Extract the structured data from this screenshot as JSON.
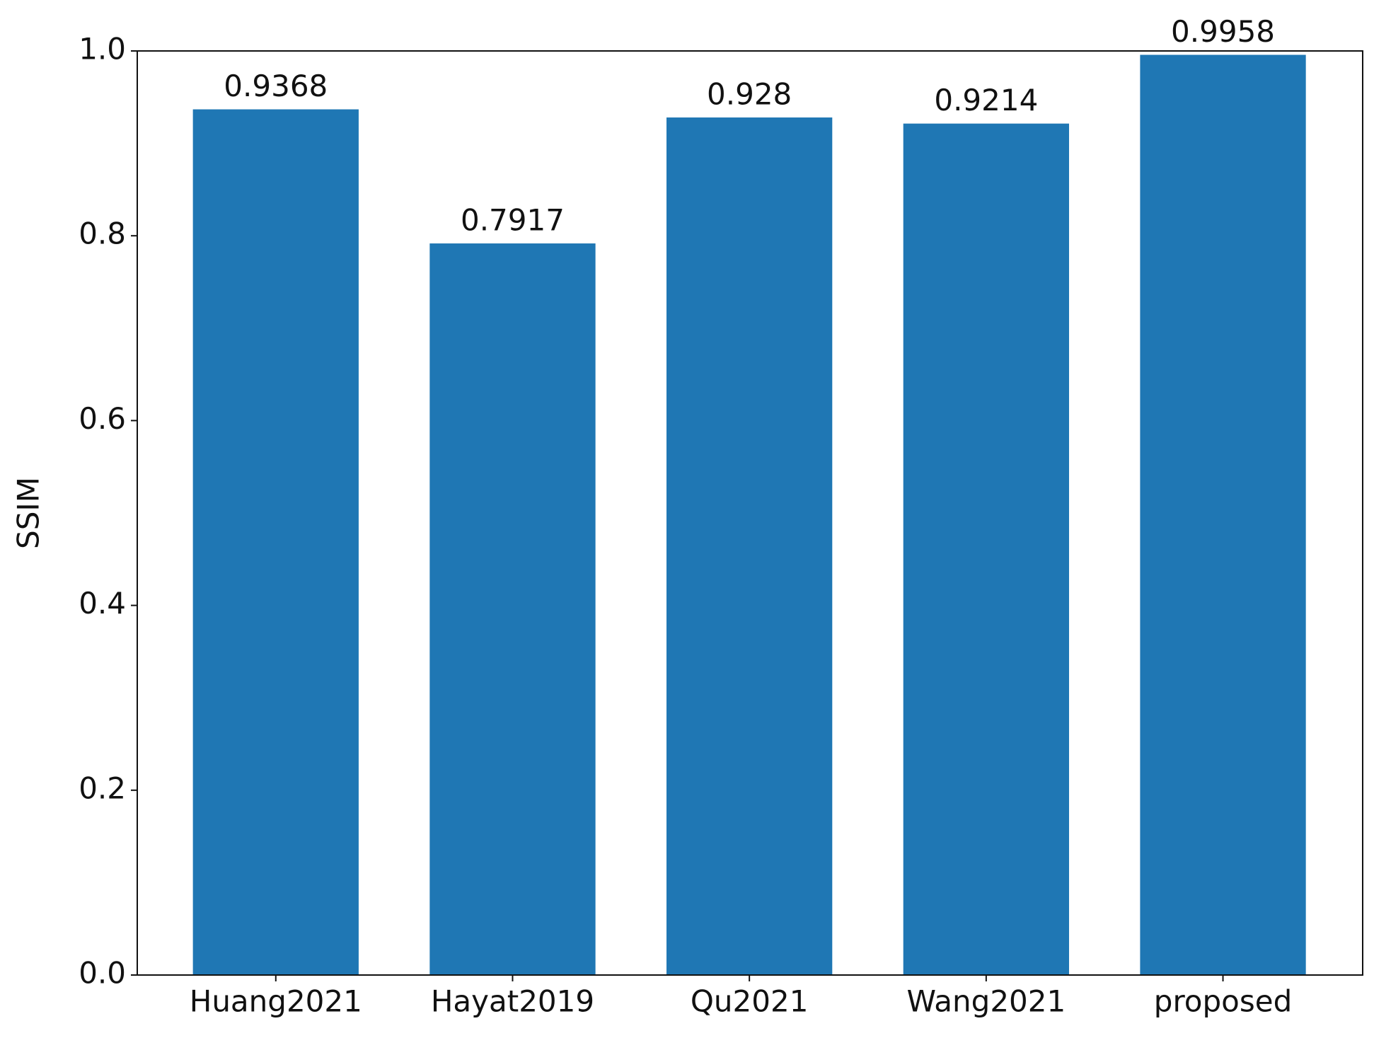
{
  "chart_data": {
    "type": "bar",
    "y_label": "SSIM",
    "categories": [
      "Huang2021",
      "Hayat2019",
      "Qu2021",
      "Wang2021",
      "proposed"
    ],
    "values": [
      0.9368,
      0.7917,
      0.928,
      0.9214,
      0.9958
    ],
    "color": "#1f77b4",
    "ylim": [
      0,
      1
    ],
    "yticks": [
      {
        "value": 0,
        "label": "0.0"
      },
      0.2,
      0.4,
      0.6,
      0.8,
      {
        "value": 1,
        "label": "1.0"
      }
    ],
    "show_value_labels": true
  }
}
